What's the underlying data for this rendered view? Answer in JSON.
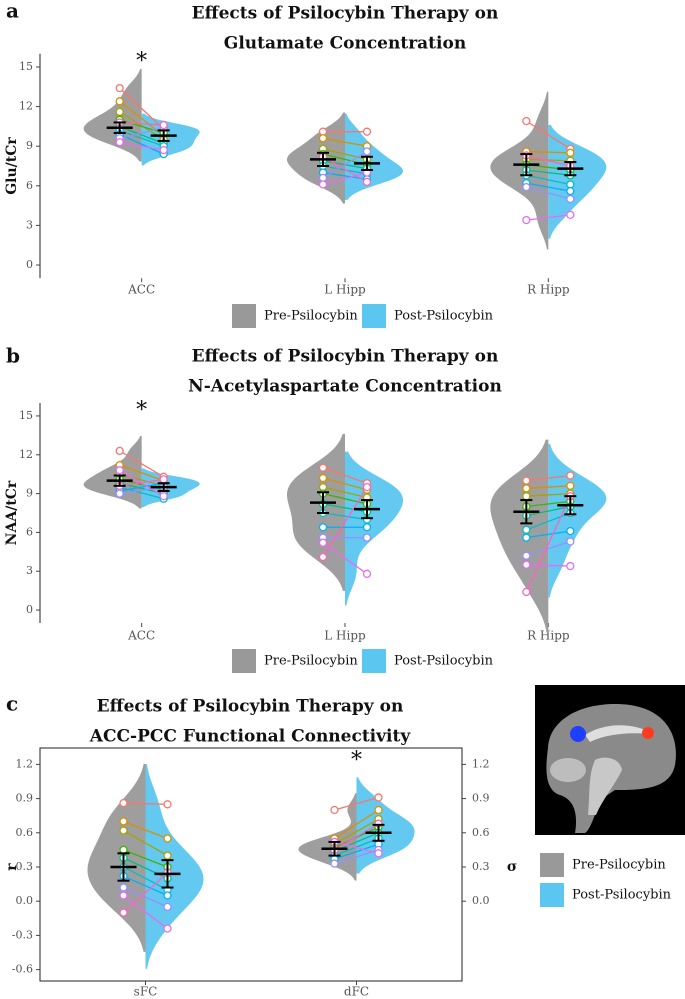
{
  "chart_data": [
    {
      "type": "violin",
      "panel_label": "a",
      "title": [
        "Effects of Psilocybin Therapy on",
        "Glutamate Concentration"
      ],
      "y_label": "Glu/tCr",
      "legend": "bottom",
      "categories": [
        "ACC",
        "L Hipp",
        "R Hipp"
      ],
      "series": [
        {
          "name": "Pre-Psilocybin",
          "color": "#999999",
          "values": [
            10.4,
            8.0,
            7.6
          ],
          "errors": [
            0.4,
            0.5,
            0.8
          ],
          "points": [
            [
              13.4,
              12.4,
              11.6,
              11.0,
              10.5,
              10.2,
              9.9,
              9.6,
              9.3,
              10.8
            ],
            [
              10.1,
              9.6,
              8.8,
              8.4,
              7.9,
              7.5,
              7.0,
              6.6,
              6.1,
              8.2
            ],
            [
              10.9,
              8.6,
              8.0,
              7.6,
              7.2,
              6.8,
              6.2,
              5.9,
              3.4,
              8.3
            ]
          ]
        },
        {
          "name": "Post-Psilocybin",
          "color": "#5bc6ef",
          "values": [
            9.8,
            7.7,
            7.3
          ],
          "errors": [
            0.4,
            0.5,
            0.5
          ],
          "points": [
            [
              10.3,
              9.8,
              9.5,
              10.0,
              9.2,
              9.0,
              8.4,
              10.4,
              8.7,
              10.6
            ],
            [
              10.1,
              9.0,
              8.0,
              7.6,
              7.3,
              6.9,
              6.5,
              8.6,
              7.0,
              6.3
            ],
            [
              8.8,
              8.5,
              7.9,
              7.2,
              6.8,
              6.1,
              5.6,
              5.0,
              3.8,
              7.5
            ]
          ]
        }
      ],
      "ylim": [
        -1,
        16
      ],
      "yticks": [
        0,
        3,
        6,
        9,
        12,
        15
      ],
      "significance_marker": "*",
      "significant": [
        true,
        false,
        false
      ],
      "subject_colors": [
        "#f8766d",
        "#d89000",
        "#a3a500",
        "#39b600",
        "#00bf7d",
        "#00bfc4",
        "#00b0f6",
        "#9590ff",
        "#e76bf3",
        "#ff62bc"
      ]
    },
    {
      "type": "violin",
      "panel_label": "b",
      "title": [
        "Effects of Psilocybin Therapy on",
        "N-Acetylaspartate Concentration"
      ],
      "y_label": "NAA/tCr",
      "legend": "bottom",
      "categories": [
        "ACC",
        "L Hipp",
        "R Hipp"
      ],
      "series": [
        {
          "name": "Pre-Psilocybin",
          "color": "#999999",
          "values": [
            10.0,
            8.3,
            7.6
          ],
          "errors": [
            0.4,
            0.8,
            0.9
          ],
          "points": [
            [
              12.3,
              11.2,
              10.5,
              10.1,
              9.8,
              9.5,
              9.2,
              9.0,
              10.8,
              9.6
            ],
            [
              11.0,
              10.2,
              9.5,
              9.0,
              8.2,
              7.5,
              6.4,
              5.6,
              5.2,
              4.1
            ],
            [
              10.0,
              9.4,
              8.8,
              8.0,
              7.3,
              6.2,
              5.6,
              4.2,
              3.5,
              1.4
            ]
          ]
        },
        {
          "name": "Post-Psilocybin",
          "color": "#5bc6ef",
          "values": [
            9.5,
            7.8,
            8.1
          ],
          "errors": [
            0.3,
            0.7,
            0.7
          ],
          "points": [
            [
              10.3,
              10.0,
              9.6,
              9.3,
              9.0,
              8.6,
              9.8,
              9.5,
              8.8,
              10.1
            ],
            [
              9.8,
              9.3,
              8.7,
              8.2,
              7.6,
              7.0,
              6.4,
              5.6,
              2.8,
              9.5
            ],
            [
              10.4,
              9.6,
              9.0,
              8.4,
              8.0,
              7.5,
              6.1,
              5.3,
              3.4,
              8.8
            ]
          ]
        }
      ],
      "ylim": [
        -1,
        16
      ],
      "yticks": [
        0,
        3,
        6,
        9,
        12,
        15
      ],
      "significance_marker": "*",
      "significant": [
        true,
        false,
        false
      ],
      "subject_colors": [
        "#f8766d",
        "#d89000",
        "#a3a500",
        "#39b600",
        "#00bf7d",
        "#00bfc4",
        "#00b0f6",
        "#9590ff",
        "#e76bf3",
        "#ff62bc"
      ]
    },
    {
      "type": "violin",
      "panel_label": "c",
      "title": [
        "Effects of Psilocybin Therapy on",
        "ACC-PCC Functional Connectivity"
      ],
      "y_label": "r",
      "y2_label": "σ",
      "legend": "right",
      "categories": [
        "sFC",
        "dFC"
      ],
      "series": [
        {
          "name": "Pre-Psilocybin",
          "color": "#999999",
          "values": [
            0.3,
            0.46
          ],
          "errors": [
            0.12,
            0.06
          ],
          "points": [
            [
              0.86,
              0.7,
              0.62,
              0.45,
              0.38,
              0.3,
              0.22,
              0.12,
              0.05,
              -0.1
            ],
            [
              0.8,
              0.55,
              0.5,
              0.47,
              0.44,
              0.4,
              0.37,
              0.33,
              0.52,
              0.45
            ]
          ]
        },
        {
          "name": "Post-Psilocybin",
          "color": "#5bc6ef",
          "values": [
            0.24,
            0.6
          ],
          "errors": [
            0.12,
            0.07
          ],
          "points": [
            [
              0.85,
              0.55,
              0.4,
              0.3,
              0.2,
              0.1,
              0.05,
              -0.05,
              -0.24,
              0.25
            ],
            [
              0.91,
              0.8,
              0.72,
              0.65,
              0.6,
              0.55,
              0.5,
              0.45,
              0.42,
              0.68
            ]
          ]
        }
      ],
      "ylim": [
        -0.7,
        1.3
      ],
      "yticks": [
        {
          "value": -0.6,
          "label": "-0.6"
        },
        -0.3,
        {
          "value": 0,
          "label": "0.0"
        },
        0.3,
        0.6,
        0.9,
        1.2
      ],
      "y2lim": [
        -0.7,
        1.3
      ],
      "y2ticks": [
        {
          "value": 0,
          "label": "0.0"
        },
        0.3,
        0.6,
        0.9,
        1.2
      ],
      "significance_marker": "*",
      "significant": [
        false,
        true
      ],
      "subject_colors": [
        "#f8766d",
        "#d89000",
        "#a3a500",
        "#39b600",
        "#00bf7d",
        "#00bfc4",
        "#00b0f6",
        "#9590ff",
        "#e76bf3",
        "#ff62bc"
      ]
    }
  ]
}
